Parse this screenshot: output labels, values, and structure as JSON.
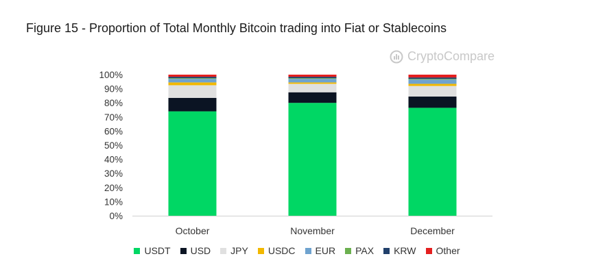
{
  "title": "Figure 15 - Proportion of Total Monthly Bitcoin trading into Fiat or Stablecoins",
  "watermark": {
    "text": "CryptoCompare",
    "icon": "cryptocompare-logo-icon"
  },
  "chart_data": {
    "type": "bar",
    "stacked": true,
    "categories": [
      "October",
      "November",
      "December"
    ],
    "y_ticks": [
      "0%",
      "10%",
      "20%",
      "30%",
      "40%",
      "50%",
      "60%",
      "70%",
      "80%",
      "90%",
      "100%"
    ],
    "ylim": [
      0,
      100
    ],
    "grid": false,
    "legend_position": "bottom",
    "series": [
      {
        "name": "USDT",
        "color": "#00d764",
        "values": [
          74,
          80,
          76.5
        ]
      },
      {
        "name": "USD",
        "color": "#0b1423",
        "values": [
          9.5,
          7.5,
          8
        ]
      },
      {
        "name": "JPY",
        "color": "#e0e0e0",
        "values": [
          9,
          6,
          7.5
        ]
      },
      {
        "name": "USDC",
        "color": "#f2b800",
        "values": [
          2,
          1,
          1.5
        ]
      },
      {
        "name": "EUR",
        "color": "#6fa3cf",
        "values": [
          2.5,
          2.5,
          3
        ]
      },
      {
        "name": "PAX",
        "color": "#6bb04f",
        "values": [
          0.5,
          0.5,
          0.5
        ]
      },
      {
        "name": "KRW",
        "color": "#21406b",
        "values": [
          1,
          1,
          1
        ]
      },
      {
        "name": "Other",
        "color": "#e41f1f",
        "values": [
          1.5,
          1.5,
          2
        ]
      }
    ]
  }
}
